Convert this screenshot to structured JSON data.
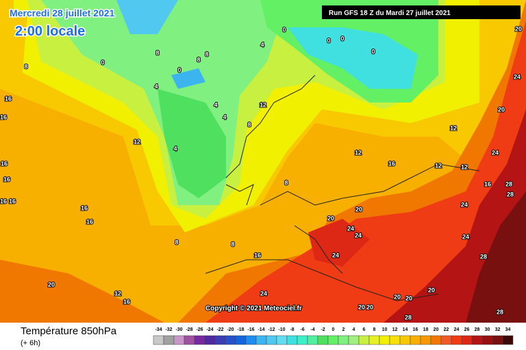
{
  "header": {
    "date": "Mercredi 28 juillet 2021",
    "time": "2:00 locale",
    "run": "Run GFS 18 Z du Mardi 27 juillet 2021"
  },
  "copyright": "Copyright © 2021 Meteociel.fr",
  "footer": {
    "title": "Température 850hPa",
    "subtitle": "(+ 6h)"
  },
  "scale": {
    "values": [
      -34,
      -32,
      -30,
      -28,
      -26,
      -24,
      -22,
      -20,
      -18,
      -16,
      -14,
      -12,
      -10,
      -8,
      -6,
      -4,
      -2,
      0,
      2,
      4,
      6,
      8,
      10,
      12,
      14,
      16,
      18,
      20,
      22,
      24,
      26,
      28,
      30,
      32,
      34
    ],
    "colors": [
      "#c8c8c8",
      "#a0a0a0",
      "#c896c8",
      "#a050a0",
      "#7828a0",
      "#5028a0",
      "#3c3cb4",
      "#2850c8",
      "#1464dc",
      "#1e8cf0",
      "#3cb4f0",
      "#50c8f0",
      "#64dcf0",
      "#40e0e0",
      "#3cf0c8",
      "#50f0a0",
      "#50e060",
      "#64f064",
      "#80f080",
      "#a0f080",
      "#c8f040",
      "#e6f028",
      "#f0f000",
      "#f8e000",
      "#f8c800",
      "#f8b000",
      "#f89800",
      "#f07800",
      "#f05a28",
      "#f03c14",
      "#dc2814",
      "#b41414",
      "#961010",
      "#781010",
      "#3c0808"
    ]
  },
  "contour_labels": [
    0,
    8,
    16,
    16,
    16,
    16,
    16,
    16,
    16,
    16,
    12,
    4,
    4,
    4,
    8,
    12,
    8,
    8,
    8,
    16,
    20,
    20,
    24,
    24,
    24,
    24,
    20,
    12,
    16,
    12,
    16,
    12,
    12,
    12,
    16,
    28,
    24,
    24,
    24,
    28,
    28,
    20,
    24,
    20,
    20,
    20,
    20,
    20,
    20,
    28,
    28,
    4,
    0,
    0,
    0,
    0,
    8,
    8,
    8,
    4,
    0
  ]
}
